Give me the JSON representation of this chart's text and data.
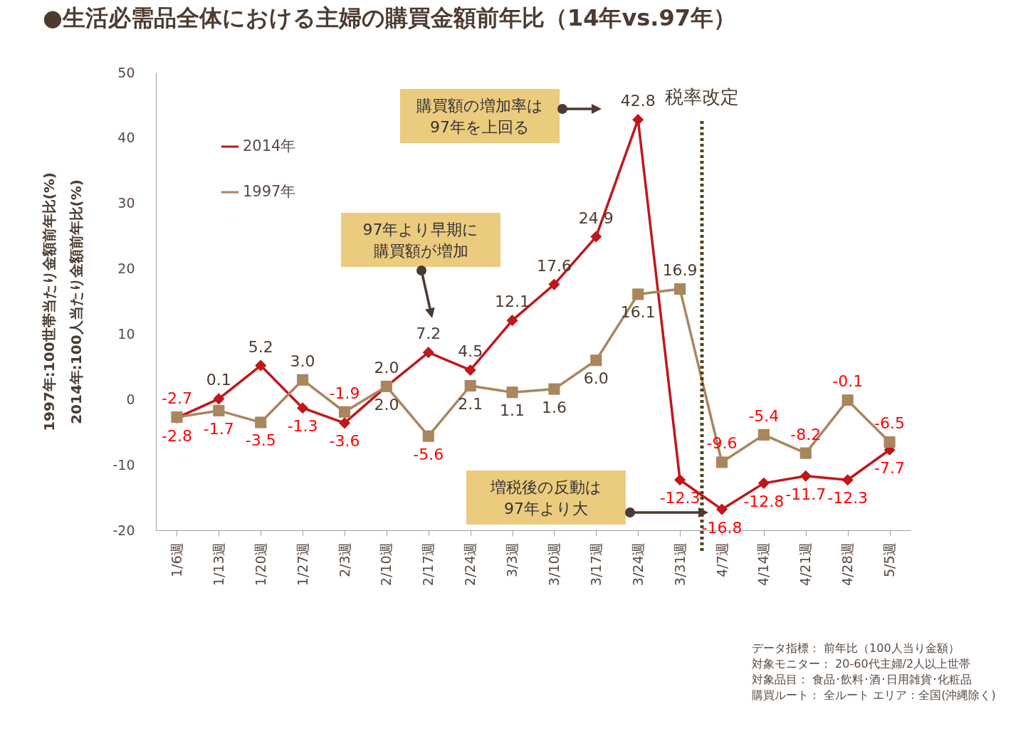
{
  "chart_data": {
    "type": "line",
    "title": "●生活必需品全体における主婦の購買金額前年比（14年vs.97年）",
    "ylabel": "1997年:100世帯当たり金額前年比(%)\n2014年:100人当たり金額前年比(%)",
    "categories": [
      "1/6週",
      "1/13週",
      "1/20週",
      "1/27週",
      "2/3週",
      "2/10週",
      "2/17週",
      "2/24週",
      "3/3週",
      "3/10週",
      "3/17週",
      "3/24週",
      "3/31週",
      "4/7週",
      "4/14週",
      "4/21週",
      "4/28週",
      "5/5週"
    ],
    "series": [
      {
        "name": "2014年",
        "color": "#c0171b",
        "marker": "diamond",
        "values": [
          -2.8,
          0.1,
          5.2,
          -1.3,
          -3.6,
          2.0,
          7.2,
          4.5,
          12.1,
          17.6,
          24.9,
          42.8,
          -12.3,
          -16.8,
          -12.8,
          -11.7,
          -12.3,
          -7.7
        ],
        "value_labels": [
          "-2.8",
          "0.1",
          "5.2",
          "-1.3",
          "-3.6",
          "2.0",
          "7.2",
          "4.5",
          "12.1",
          "17.6",
          "24.9",
          "42.8",
          "-12.3",
          "-16.8",
          "-12.8",
          "-11.7",
          "-12.3",
          "-7.7"
        ]
      },
      {
        "name": "1997年",
        "color": "#a9865d",
        "marker": "square",
        "values": [
          -2.7,
          -1.7,
          -3.5,
          3.0,
          -1.9,
          2.0,
          -5.6,
          2.1,
          1.1,
          1.6,
          6.0,
          16.1,
          16.9,
          -9.6,
          -5.4,
          -8.2,
          -0.1,
          -6.5
        ],
        "value_labels": [
          "-2.7",
          "-1.7",
          "-3.5",
          "3.0",
          "-1.9",
          "2.0",
          "-5.6",
          "2.1",
          "1.1",
          "1.6",
          "6.0",
          "16.1",
          "16.9",
          "-9.6",
          "-5.4",
          "-8.2",
          "-0.1",
          "-6.5"
        ]
      }
    ],
    "ylim": [
      -20,
      50
    ],
    "yticks": [
      -20,
      -10,
      0,
      10,
      20,
      30,
      40,
      50
    ],
    "legend": "top left",
    "line_style": "solid",
    "ref_lines": [
      {
        "axis": "x",
        "value": "4/7週",
        "label": "税率改定",
        "color": "#4f4619",
        "line_style": "dotted"
      }
    ],
    "annotations": [
      "購買額の増加率は97年を上回る",
      "97年より早期に購買額が増加",
      "増税後の反動は97年より大",
      "データ指標： 前年比（100人当り金額）",
      "対象モニター： 20-60代主婦/2人以上世帯",
      "対象品目： 食品･飲料･酒･日用雑貨･化粧品",
      "購買ルート： 全ルート エリア：全国(沖縄除く)"
    ]
  }
}
